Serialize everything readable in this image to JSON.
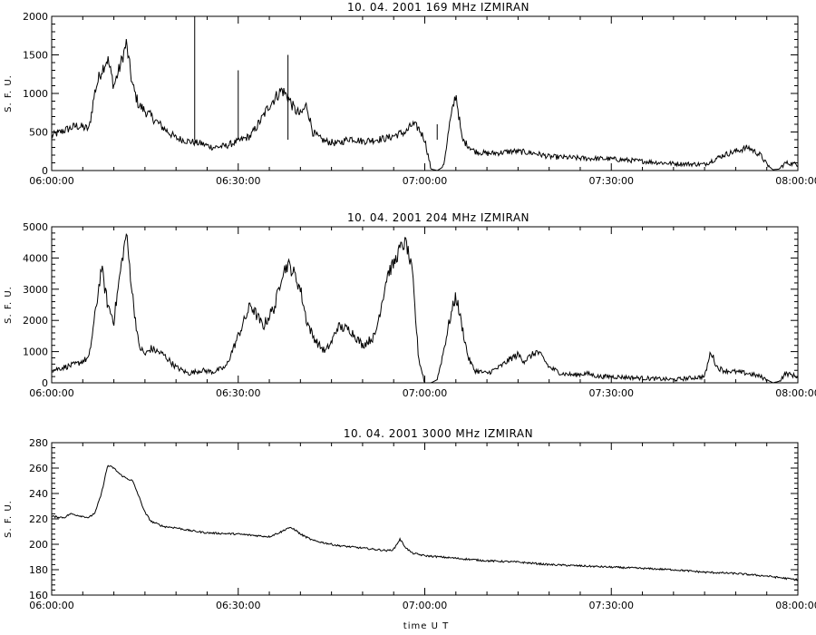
{
  "figure": {
    "footer_label": "time  U T",
    "line_color": "#000000",
    "background": "#ffffff"
  },
  "chart_data": [
    {
      "type": "line",
      "title": "10.  04.  2001    169 MHz    IZMIRAN",
      "ylabel": "S. F. U.",
      "xlabel": "",
      "x_ticks": [
        "06:00:00",
        "06:30:00",
        "07:00:00",
        "07:30:00",
        "08:00:00"
      ],
      "x_range_minutes": [
        0,
        120
      ],
      "ylim": [
        0,
        2000
      ],
      "y_ticks": [
        0,
        500,
        1000,
        1500,
        2000
      ],
      "grid": false,
      "series": [
        {
          "name": "",
          "x_minutes": [
            0,
            2,
            4,
            6,
            7,
            8,
            9,
            10,
            11,
            12,
            13,
            14,
            16,
            18,
            20,
            22,
            24,
            26,
            28,
            30,
            32,
            34,
            35,
            36,
            37,
            38,
            39,
            40,
            41,
            42,
            43,
            44,
            46,
            48,
            50,
            52,
            54,
            56,
            57,
            58,
            59,
            60,
            61,
            62,
            63,
            64,
            65,
            66,
            68,
            70,
            72,
            74,
            76,
            78,
            80,
            85,
            90,
            95,
            100,
            105,
            108,
            110,
            112,
            114,
            115,
            116,
            117,
            118,
            120
          ],
          "values": [
            450,
            520,
            580,
            540,
            1050,
            1300,
            1450,
            1100,
            1350,
            1650,
            1100,
            850,
            700,
            550,
            420,
            380,
            350,
            300,
            320,
            380,
            450,
            700,
            850,
            950,
            1050,
            950,
            800,
            720,
            850,
            500,
            420,
            380,
            350,
            420,
            380,
            400,
            420,
            480,
            500,
            600,
            550,
            400,
            20,
            0,
            50,
            600,
            1000,
            400,
            250,
            220,
            230,
            250,
            240,
            220,
            180,
            160,
            150,
            120,
            90,
            80,
            200,
            250,
            300,
            200,
            80,
            10,
            20,
            100,
            80
          ]
        }
      ],
      "spikes": [
        {
          "x_minutes": 23,
          "value": 2000
        },
        {
          "x_minutes": 30,
          "value": 1300
        },
        {
          "x_minutes": 38,
          "value": 1500
        },
        {
          "x_minutes": 62,
          "value": 600
        }
      ]
    },
    {
      "type": "line",
      "title": "10.  04.  2001    204 MHz    IZMIRAN",
      "ylabel": "S. F. U.",
      "xlabel": "",
      "x_ticks": [
        "06:00:00",
        "06:30:00",
        "07:00:00",
        "07:30:00",
        "08:00:00"
      ],
      "x_range_minutes": [
        0,
        120
      ],
      "ylim": [
        0,
        5000
      ],
      "y_ticks": [
        0,
        1000,
        2000,
        3000,
        4000,
        5000
      ],
      "grid": false,
      "series": [
        {
          "name": "",
          "x_minutes": [
            0,
            2,
            4,
            6,
            7,
            8,
            9,
            10,
            11,
            12,
            13,
            14,
            15,
            16,
            18,
            20,
            22,
            24,
            26,
            28,
            30,
            32,
            34,
            36,
            37,
            38,
            39,
            40,
            41,
            42,
            43,
            44,
            45,
            46,
            48,
            50,
            52,
            53,
            54,
            55,
            56,
            57,
            58,
            59,
            60,
            61,
            62,
            63,
            64,
            65,
            66,
            67,
            68,
            70,
            72,
            74,
            75,
            76,
            78,
            79,
            80,
            82,
            84,
            86,
            88,
            90,
            95,
            100,
            105,
            106,
            107,
            108,
            110,
            112,
            114,
            116,
            117,
            118,
            120
          ],
          "values": [
            400,
            500,
            600,
            800,
            2200,
            3700,
            2500,
            2000,
            3500,
            4800,
            2800,
            1200,
            900,
            1100,
            900,
            500,
            300,
            400,
            350,
            500,
            1500,
            2500,
            1800,
            2500,
            3500,
            3800,
            3500,
            3000,
            2000,
            1500,
            1200,
            1000,
            1300,
            1800,
            1700,
            1200,
            1500,
            2500,
            3500,
            3800,
            4300,
            4500,
            3500,
            800,
            0,
            0,
            100,
            1000,
            2000,
            2800,
            1800,
            800,
            400,
            300,
            500,
            800,
            900,
            700,
            1000,
            800,
            500,
            300,
            250,
            300,
            200,
            200,
            150,
            100,
            200,
            1000,
            500,
            400,
            350,
            300,
            200,
            0,
            50,
            300,
            200
          ]
        }
      ],
      "spikes": []
    },
    {
      "type": "line",
      "title": "10.  04.  2001    3000 MHz    IZMIRAN",
      "ylabel": "S. F. U.",
      "xlabel": "",
      "x_ticks": [
        "06:00:00",
        "06:30:00",
        "07:00:00",
        "07:30:00",
        "08:00:00"
      ],
      "x_range_minutes": [
        0,
        120
      ],
      "ylim": [
        160,
        280
      ],
      "y_ticks": [
        160,
        180,
        200,
        220,
        240,
        260,
        280
      ],
      "grid": false,
      "series": [
        {
          "name": "",
          "x_minutes": [
            0,
            2,
            3,
            5,
            6,
            7,
            8,
            9,
            10,
            11,
            12,
            13,
            14,
            15,
            16,
            18,
            20,
            22,
            25,
            30,
            35,
            36,
            37,
            38,
            39,
            40,
            42,
            44,
            46,
            48,
            50,
            52,
            54,
            55,
            56,
            57,
            58,
            60,
            65,
            70,
            75,
            80,
            90,
            100,
            105,
            110,
            115,
            120
          ],
          "values": [
            222,
            221,
            224,
            222,
            221,
            225,
            240,
            262,
            260,
            255,
            252,
            250,
            238,
            225,
            218,
            214,
            213,
            211,
            209,
            208,
            206,
            208,
            210,
            213,
            212,
            208,
            203,
            201,
            199,
            198,
            197,
            196,
            195,
            196,
            204,
            197,
            193,
            191,
            189,
            187,
            186,
            184,
            182,
            180,
            178,
            177,
            175,
            172
          ]
        }
      ],
      "spikes": []
    }
  ]
}
